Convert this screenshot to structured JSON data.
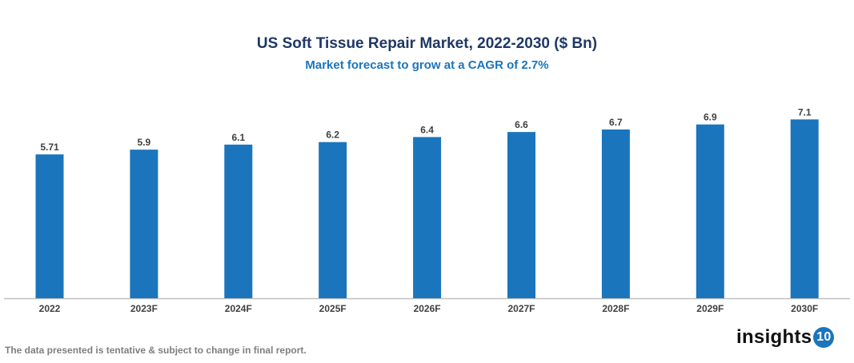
{
  "chart_data": {
    "type": "bar",
    "title": "US Soft Tissue Repair Market, 2022-2030 ($ Bn)",
    "subtitle": "Market forecast to grow at a CAGR of 2.7%",
    "categories": [
      "2022",
      "2023F",
      "2024F",
      "2025F",
      "2026F",
      "2027F",
      "2028F",
      "2029F",
      "2030F"
    ],
    "values": [
      5.71,
      5.9,
      6.1,
      6.2,
      6.4,
      6.6,
      6.7,
      6.9,
      7.1
    ],
    "value_labels": [
      "5.71",
      "5.9",
      "6.1",
      "6.2",
      "6.4",
      "6.6",
      "6.7",
      "6.9",
      "7.1"
    ],
    "xlabel": "",
    "ylabel": "",
    "ylim": [
      0,
      7.2
    ],
    "grid": false,
    "legend": "none",
    "bar_color": "#1a75bc"
  },
  "footer": "The data presented is tentative & subject to change in final report.",
  "logo": {
    "text": "insights",
    "badge": "10"
  }
}
